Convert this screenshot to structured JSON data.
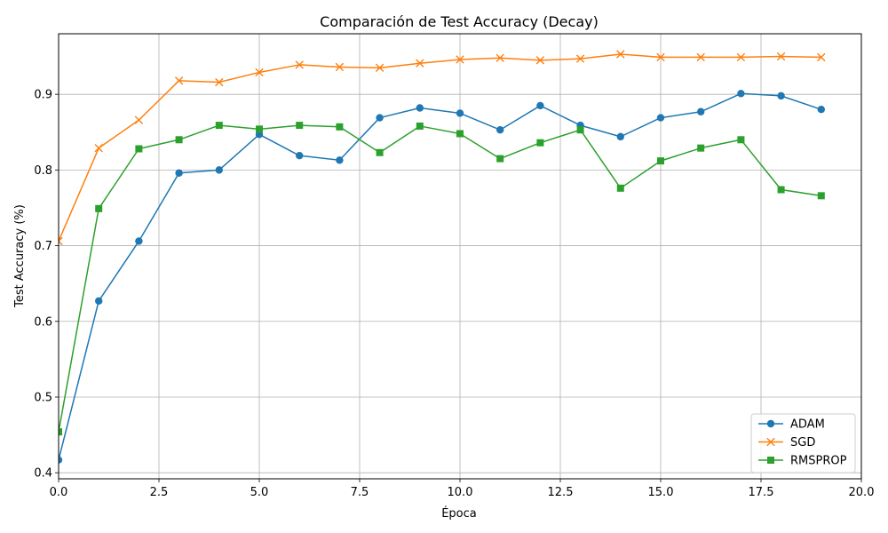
{
  "chart_data": {
    "type": "line",
    "title": "Comparación de Test Accuracy (Decay)",
    "xlabel": "Época",
    "ylabel": "Test Accuracy (%)",
    "xlim": [
      0,
      20
    ],
    "ylim": [
      0.392,
      0.98
    ],
    "xticks": [
      0,
      2.5,
      5,
      7.5,
      10,
      12.5,
      15,
      17.5,
      20
    ],
    "xtick_labels": [
      "0.0",
      "2.5",
      "5.0",
      "7.5",
      "10.0",
      "12.5",
      "15.0",
      "17.5",
      "20.0"
    ],
    "yticks": [
      0.4,
      0.5,
      0.6,
      0.7,
      0.8,
      0.9
    ],
    "ytick_labels": [
      "0.4",
      "0.5",
      "0.6",
      "0.7",
      "0.8",
      "0.9"
    ],
    "grid": true,
    "legend_position": "lower-right",
    "x": [
      0,
      1,
      2,
      3,
      4,
      5,
      6,
      7,
      8,
      9,
      10,
      11,
      12,
      13,
      14,
      15,
      16,
      17,
      18,
      19
    ],
    "series": [
      {
        "name": "ADAM",
        "color": "#1f77b4",
        "marker": "circle",
        "values": [
          0.417,
          0.627,
          0.706,
          0.796,
          0.8,
          0.847,
          0.819,
          0.813,
          0.869,
          0.882,
          0.875,
          0.853,
          0.885,
          0.859,
          0.844,
          0.869,
          0.877,
          0.901,
          0.898,
          0.88
        ]
      },
      {
        "name": "SGD",
        "color": "#ff7f0e",
        "marker": "x",
        "values": [
          0.706,
          0.829,
          0.866,
          0.918,
          0.916,
          0.929,
          0.939,
          0.936,
          0.935,
          0.941,
          0.946,
          0.948,
          0.945,
          0.947,
          0.953,
          0.949,
          0.949,
          0.949,
          0.95,
          0.949
        ]
      },
      {
        "name": "RMSPROP",
        "color": "#2ca02c",
        "marker": "square",
        "values": [
          0.454,
          0.749,
          0.828,
          0.84,
          0.859,
          0.854,
          0.859,
          0.857,
          0.823,
          0.858,
          0.848,
          0.815,
          0.836,
          0.853,
          0.776,
          0.812,
          0.829,
          0.84,
          0.774,
          0.766
        ]
      }
    ]
  }
}
